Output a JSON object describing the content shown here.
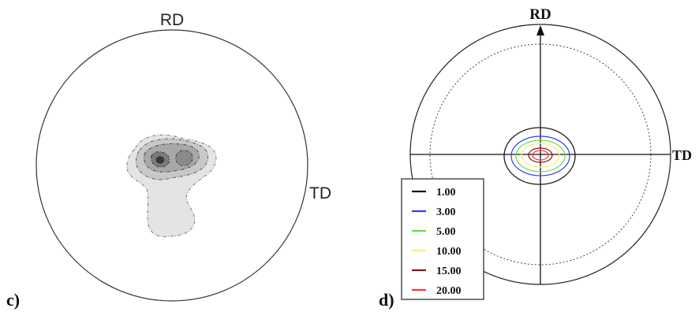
{
  "panel_c": {
    "label": "c)",
    "rd_label": "RD",
    "td_label": "TD"
  },
  "panel_d": {
    "label": "d)",
    "rd_label": "RD",
    "td_label": "TD",
    "legend": [
      {
        "value": "1.00",
        "color": "#1a1a1a"
      },
      {
        "value": "3.00",
        "color": "#2f3cff"
      },
      {
        "value": "5.00",
        "color": "#66e03a"
      },
      {
        "value": "10.00",
        "color": "#ffe98a"
      },
      {
        "value": "15.00",
        "color": "#7a1a1a"
      },
      {
        "value": "20.00",
        "color": "#ff3333"
      }
    ]
  }
}
